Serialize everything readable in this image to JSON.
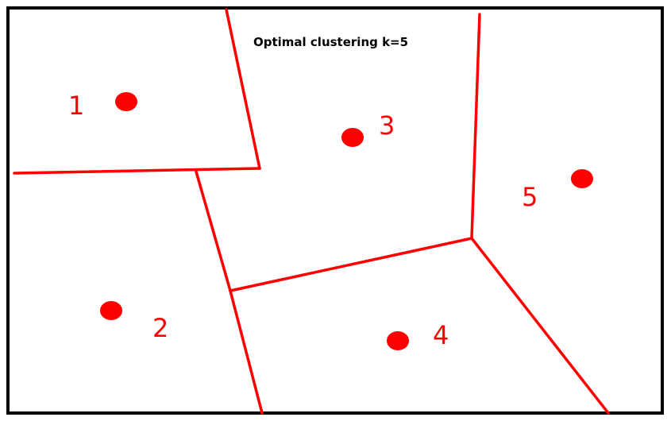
{
  "title": "Optimal clustering k=5",
  "colors": {
    "border": "#000000",
    "boundary": "#ff0000",
    "centroid": "#ff0000",
    "label": "#ff0000",
    "background": "#ffffff"
  },
  "clusters": [
    {
      "label": "1"
    },
    {
      "label": "2"
    },
    {
      "label": "3"
    },
    {
      "label": "4"
    },
    {
      "label": "5"
    }
  ]
}
